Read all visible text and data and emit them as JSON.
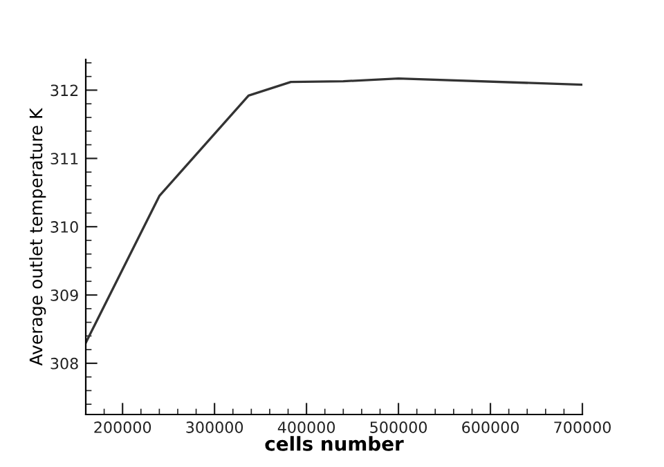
{
  "chart_data": {
    "type": "line",
    "xlabel": "cells number",
    "ylabel": "Average outlet temperature K",
    "x": [
      160000,
      240000,
      337000,
      383000,
      440000,
      500000,
      700000
    ],
    "series": [
      {
        "color": "#333333",
        "values": [
          308.3,
          310.45,
          311.92,
          312.12,
          312.13,
          312.17,
          312.08
        ]
      }
    ],
    "xlim": [
      160000,
      700000
    ],
    "xticks": [
      200000,
      300000,
      400000,
      500000,
      600000,
      700000
    ],
    "ylim": [
      307.25,
      312.45
    ],
    "yticks": [
      308,
      309,
      310,
      311,
      312
    ],
    "grid": false,
    "legend": false,
    "marker": "none",
    "line_style": "solid"
  }
}
